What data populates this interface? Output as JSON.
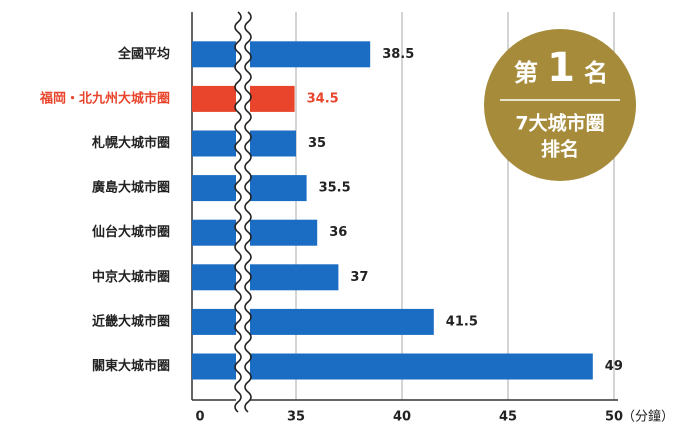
{
  "chart_data": {
    "type": "barh",
    "categories": [
      "全國平均",
      "福岡・北九州大城市圈",
      "札幌大城市圈",
      "廣島大城市圈",
      "仙台大城市圈",
      "中京大城市圈",
      "近畿大城市圈",
      "關東大城市圈"
    ],
    "values": [
      38.5,
      34.5,
      35,
      35.5,
      36,
      37,
      41.5,
      49
    ],
    "color": "#1a6dc3",
    "highlight": {
      "index": 1,
      "color": "#e8452c"
    },
    "xlim": [
      0,
      50
    ],
    "xticks": [
      0,
      35,
      40,
      45,
      50
    ],
    "xbreak": [
      0,
      35
    ],
    "xlabel": "（分鐘）",
    "grid": true
  },
  "badge": {
    "rank_prefix": "第",
    "rank": "1",
    "rank_suffix": "名",
    "lines": [
      "7大城市圈",
      "排名"
    ]
  }
}
